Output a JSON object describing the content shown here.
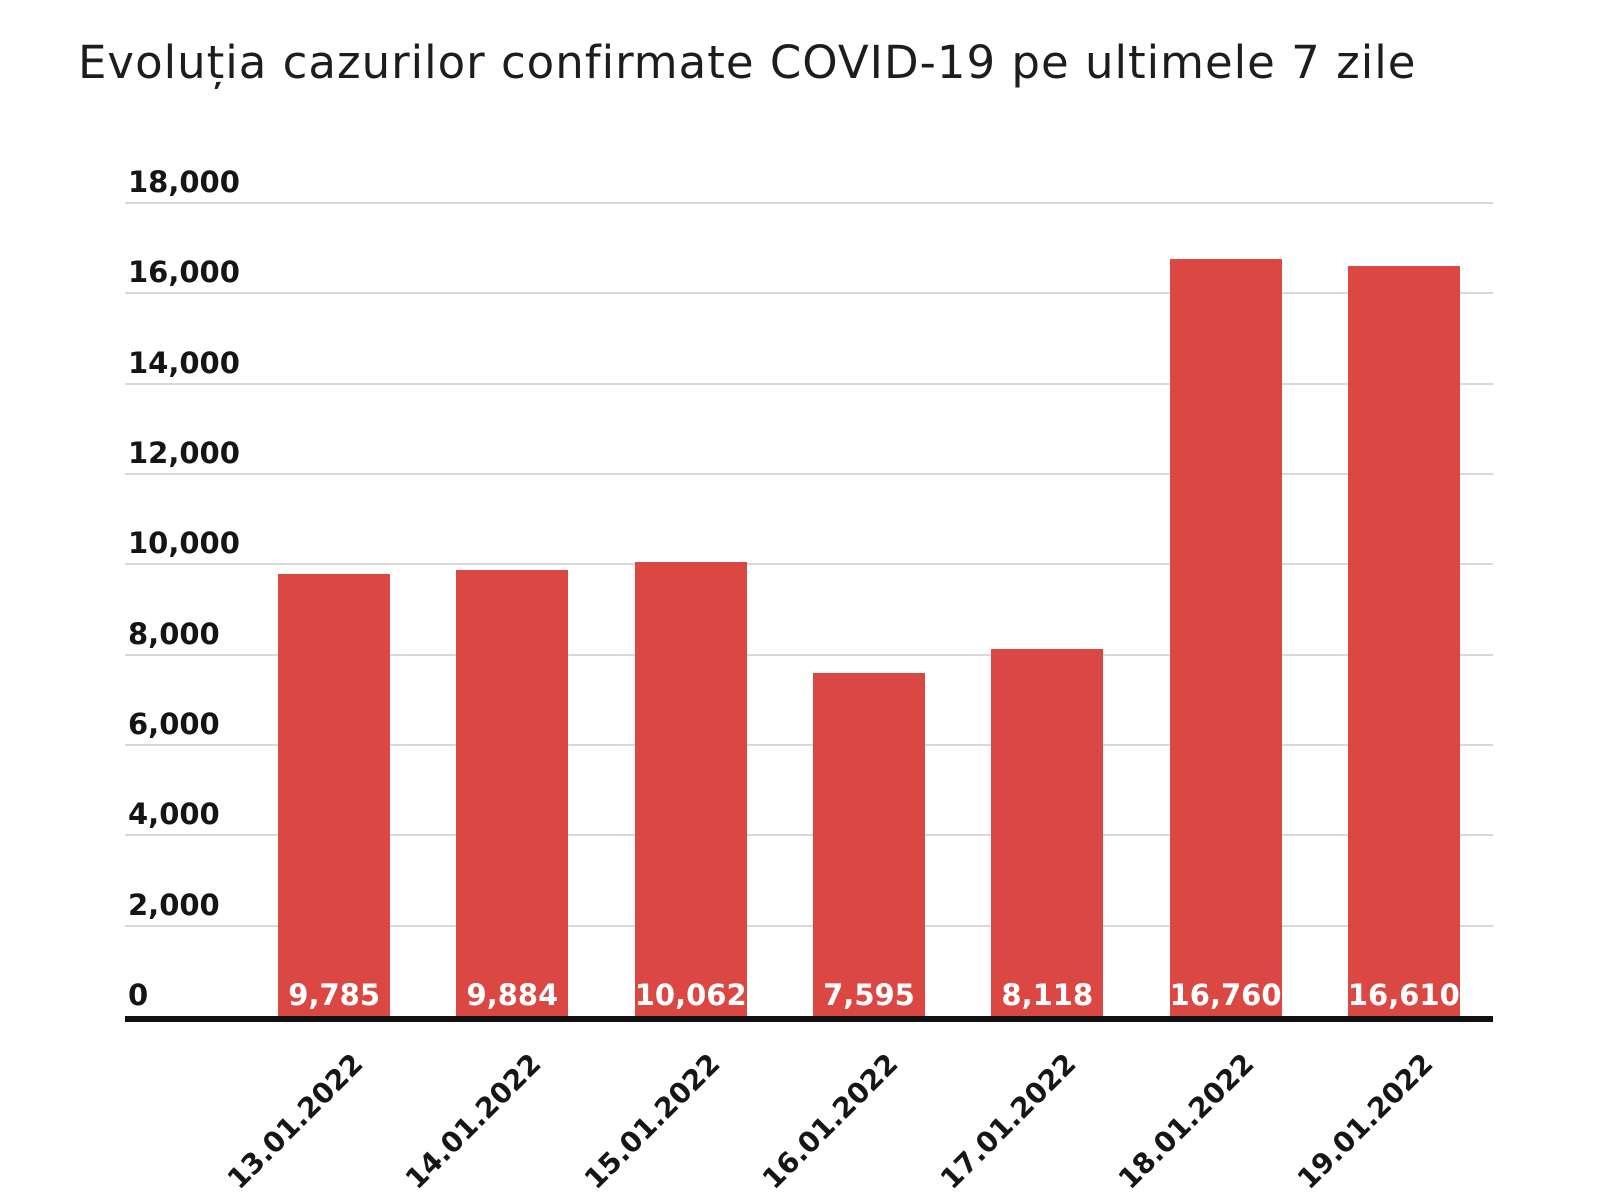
{
  "colors": {
    "background": "#ffffff",
    "bar": "#db4743",
    "gridline": "#d9d9d9",
    "axis_line": "#101010",
    "title_text": "#1d1d1d",
    "tick_text": "#151515",
    "bar_label_text": "#ffffff"
  },
  "chart_data": {
    "type": "bar",
    "title": "Evoluția cazurilor confirmate COVID-19 pe ultimele 7 zile",
    "categories": [
      "13.01.2022",
      "14.01.2022",
      "15.01.2022",
      "16.01.2022",
      "17.01.2022",
      "18.01.2022",
      "19.01.2022"
    ],
    "values": [
      9785,
      9884,
      10062,
      7595,
      8118,
      16760,
      16610
    ],
    "value_labels": [
      "9,785",
      "9,884",
      "10,062",
      "7,595",
      "8,118",
      "16,760",
      "16,610"
    ],
    "xlabel": "",
    "ylabel": "",
    "ylim": [
      0,
      18000
    ],
    "y_ticks": [
      0,
      2000,
      4000,
      6000,
      8000,
      10000,
      12000,
      14000,
      16000,
      18000
    ],
    "y_tick_labels": [
      "0",
      "2,000",
      "4,000",
      "6,000",
      "8,000",
      "10,000",
      "12,000",
      "14,000",
      "16,000",
      "18,000"
    ],
    "grid": "horizontal-on",
    "legend": "none",
    "bar_color": "#db4743",
    "x_tick_rotation_deg": 45
  }
}
